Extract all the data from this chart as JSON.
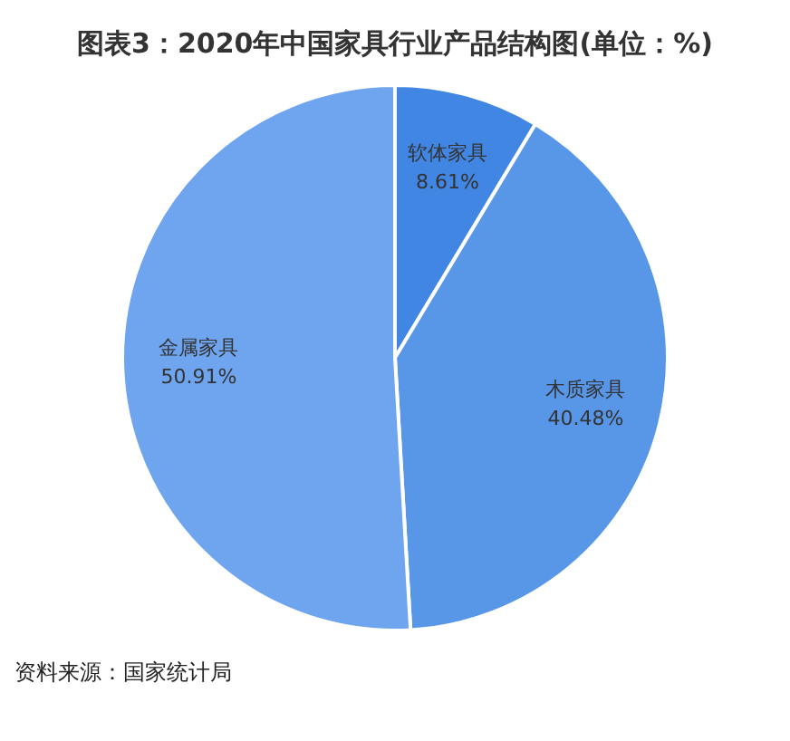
{
  "chart_data": {
    "type": "pie",
    "title": "图表3：2020年中国家具行业产品结构图(单位：%)",
    "categories": [
      "软体家具",
      "木质家具",
      "金属家具"
    ],
    "values": [
      8.61,
      40.48,
      50.91
    ],
    "value_labels": [
      "8.61%",
      "40.48%",
      "50.91%"
    ],
    "colors": [
      "#4286e3",
      "#5896e8",
      "#6ea5ee"
    ],
    "annotations": [
      "资料来源：国家统计局"
    ],
    "legend": false
  }
}
